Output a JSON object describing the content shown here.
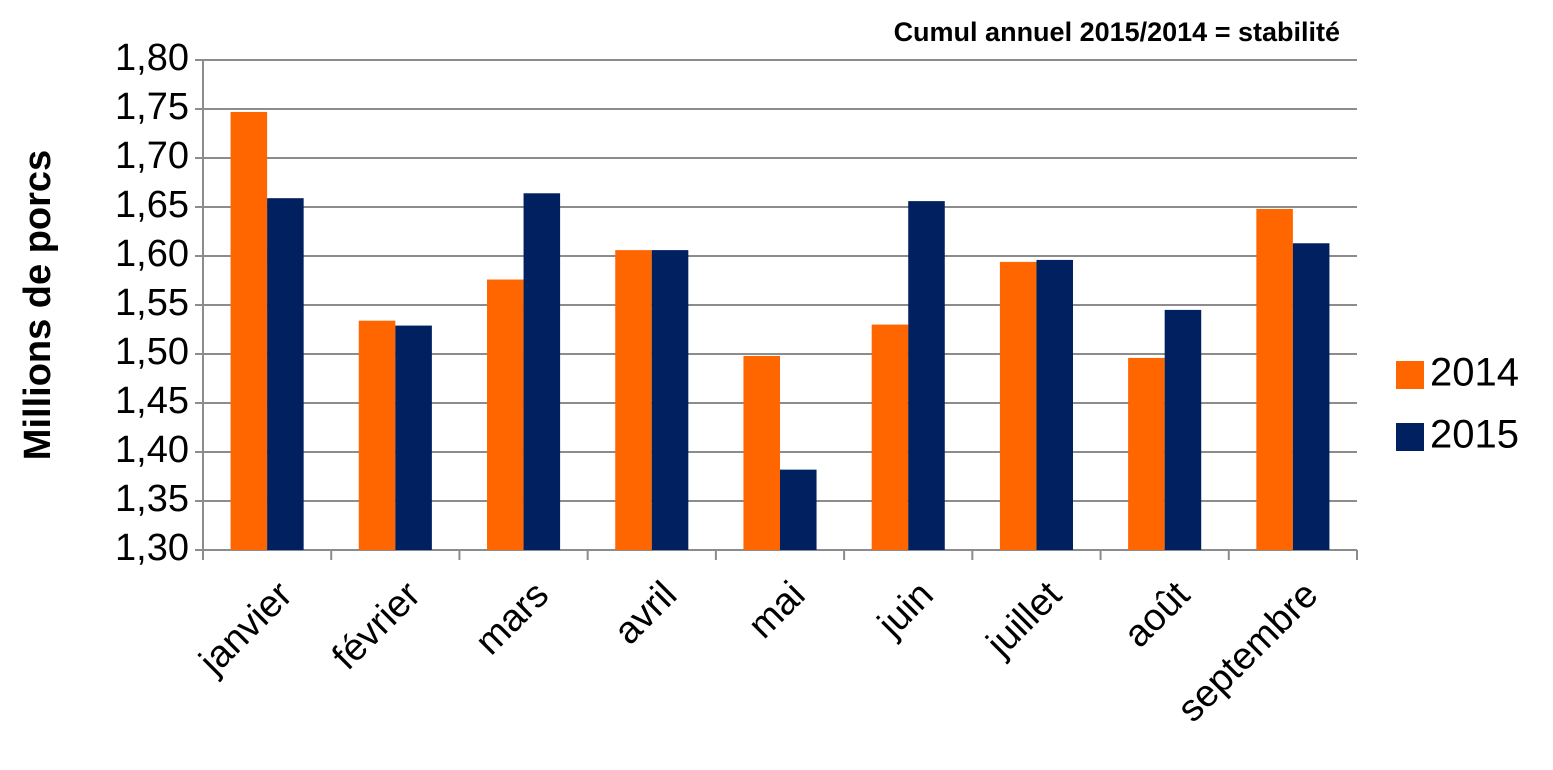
{
  "chart_data": {
    "type": "bar",
    "title": "Cumul annuel  2015/2014 = stabilité",
    "y_label": "Millions de porcs",
    "categories": [
      "janvier",
      "février",
      "mars",
      "avril",
      "mai",
      "juin",
      "juillet",
      "août",
      "septembre"
    ],
    "series": [
      {
        "name": "2014",
        "color": "#ff6600",
        "values": [
          1.747,
          1.534,
          1.576,
          1.606,
          1.498,
          1.53,
          1.594,
          1.496,
          1.648
        ]
      },
      {
        "name": "2015",
        "color": "#002060",
        "values": [
          1.659,
          1.529,
          1.664,
          1.606,
          1.382,
          1.656,
          1.596,
          1.545,
          1.613
        ]
      }
    ],
    "ylim": [
      1.3,
      1.8
    ],
    "yticks": [
      {
        "value": 1.3,
        "label": "1,30"
      },
      {
        "value": 1.35,
        "label": "1,35"
      },
      {
        "value": 1.4,
        "label": "1,40"
      },
      {
        "value": 1.45,
        "label": "1,45"
      },
      {
        "value": 1.5,
        "label": "1,50"
      },
      {
        "value": 1.55,
        "label": "1,55"
      },
      {
        "value": 1.6,
        "label": "1,60"
      },
      {
        "value": 1.65,
        "label": "1,65"
      },
      {
        "value": 1.7,
        "label": "1,70"
      },
      {
        "value": 1.75,
        "label": "1,75"
      },
      {
        "value": 1.8,
        "label": "1,80"
      }
    ],
    "grid": true,
    "legend": "right"
  }
}
